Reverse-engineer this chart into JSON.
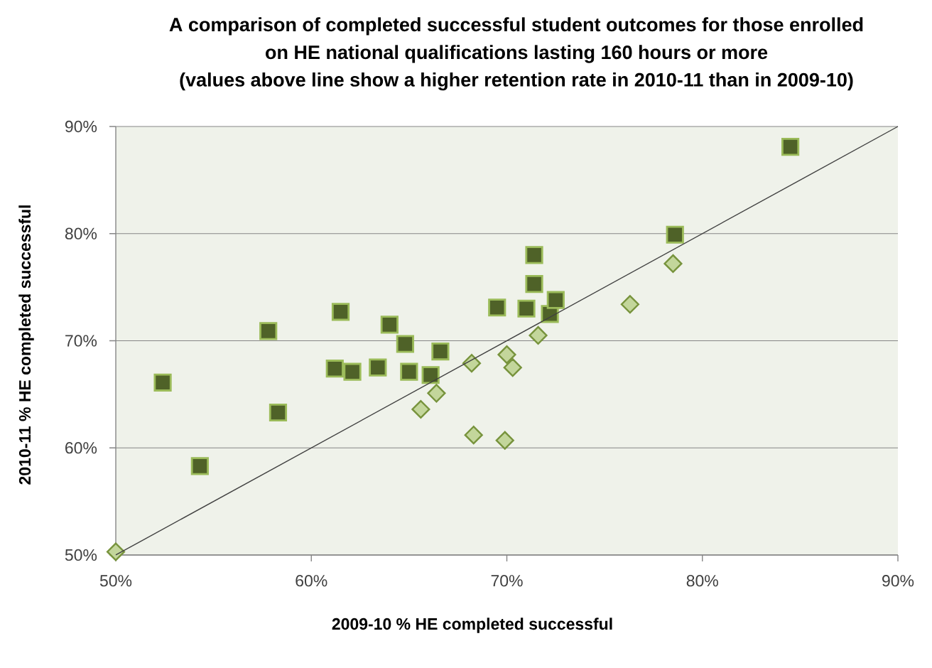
{
  "chart_data": {
    "type": "scatter",
    "title": "A comparison of  completed successful student outcomes for those enrolled on HE national qualifications lasting 160 hours or more",
    "subtitle": "(values above line show a higher retention rate in 2010-11 than in 2009-10)",
    "xlabel": "2009-10 %  HE  completed successful",
    "ylabel": "2010-11 %  HE  completed successful",
    "xlim": [
      50,
      90
    ],
    "ylim": [
      50,
      90
    ],
    "xticks": [
      {
        "value": 50,
        "label": "50%"
      },
      {
        "value": 60,
        "label": "60%"
      },
      {
        "value": 70,
        "label": "70%"
      },
      {
        "value": 80,
        "label": "80%"
      },
      {
        "value": 90,
        "label": "90%"
      }
    ],
    "yticks": [
      {
        "value": 50,
        "label": "50%"
      },
      {
        "value": 60,
        "label": "60%"
      },
      {
        "value": 70,
        "label": "70%"
      },
      {
        "value": 80,
        "label": "80%"
      },
      {
        "value": 90,
        "label": "90%"
      }
    ],
    "grid": "y",
    "series": [
      {
        "marker": "square",
        "color": "#4f6228",
        "x": [
          52.4,
          54.3,
          57.8,
          58.3,
          61.2,
          61.5,
          62.1,
          63.4,
          64.0,
          64.8,
          65.0,
          66.1,
          66.6,
          69.5,
          71.0,
          71.4,
          71.4,
          72.2,
          72.5,
          78.6,
          84.5
        ],
        "values": [
          66.1,
          58.3,
          70.9,
          63.3,
          67.4,
          72.7,
          67.1,
          67.5,
          71.5,
          69.7,
          67.1,
          66.8,
          69.0,
          73.1,
          73.0,
          78.0,
          75.3,
          72.5,
          73.8,
          79.9,
          88.1
        ]
      },
      {
        "marker": "diamond",
        "color": "#c3d69b",
        "x": [
          50.0,
          65.6,
          66.4,
          68.2,
          68.3,
          69.9,
          70.0,
          70.3,
          71.6,
          76.3,
          78.5
        ],
        "values": [
          50.3,
          63.6,
          65.1,
          67.9,
          61.2,
          60.7,
          68.7,
          67.5,
          70.5,
          73.4,
          77.2
        ]
      },
      {
        "type": "line",
        "color": "#404040",
        "line_style": "solid",
        "x": [
          50,
          90
        ],
        "values": [
          50,
          90
        ]
      }
    ]
  }
}
